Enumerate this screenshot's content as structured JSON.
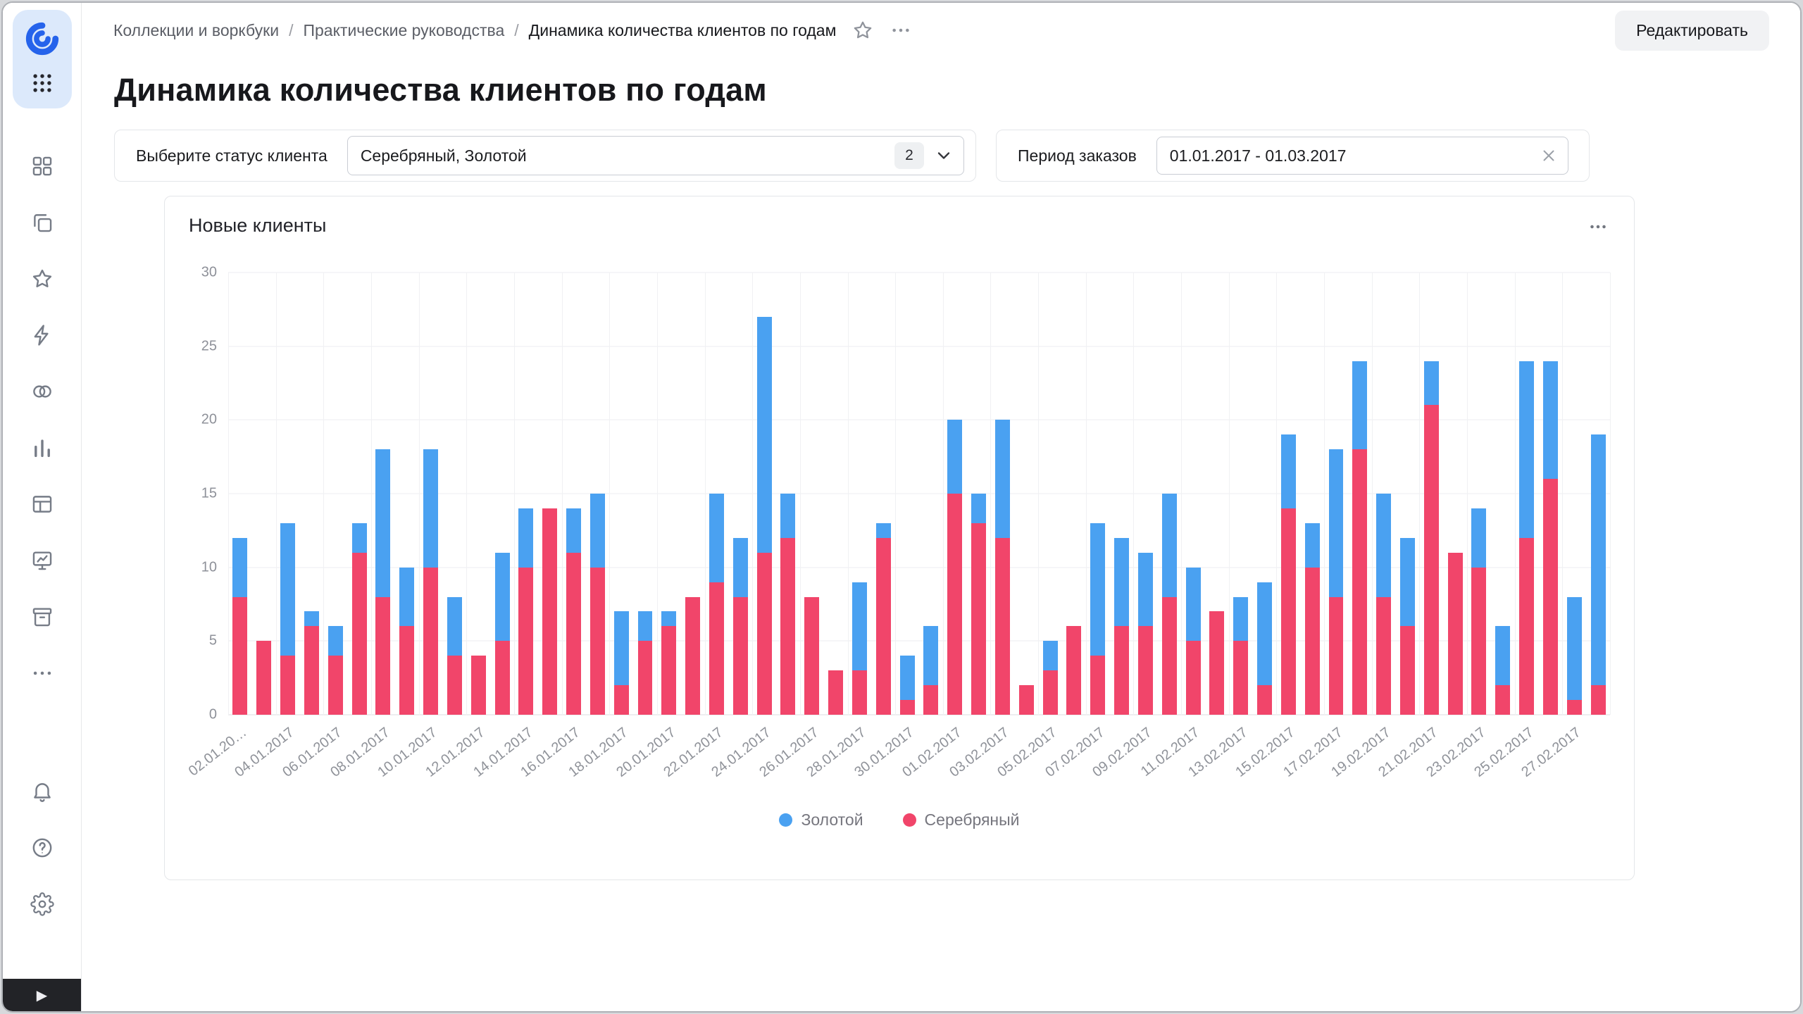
{
  "window": {
    "edit_button": "Редактировать"
  },
  "sidebar": {
    "icons": [
      "collections-icon",
      "workbooks-copy-icon",
      "favorites-star-icon",
      "editor-lightning-icon",
      "connections-circles-icon",
      "charts-bars-icon",
      "datasets-table-icon",
      "dashboards-monitor-icon",
      "storage-archive-icon",
      "more-ellipsis-icon"
    ],
    "bottom_icons": [
      "bell-icon",
      "help-icon",
      "settings-gear-icon"
    ],
    "expand_icon": "play-triangle"
  },
  "breadcrumbs": {
    "separator": "/",
    "items": [
      "Коллекции и воркбуки",
      "Практические руководства",
      "Динамика количества клиентов по годам"
    ]
  },
  "page": {
    "title": "Динамика количества клиентов по годам"
  },
  "filters": {
    "status": {
      "label": "Выберите статус клиента",
      "value": "Серебряный, Золотой",
      "count_badge": "2"
    },
    "period": {
      "label": "Период заказов",
      "value": "01.01.2017 - 01.03.2017"
    }
  },
  "chart_card": {
    "title": "Новые клиенты",
    "menu_icon": "ellipsis"
  },
  "colors": {
    "gold": "#4AA1F1",
    "silver": "#F1456A",
    "accent": "#2563EB"
  },
  "chart_data": {
    "type": "bar",
    "stacked": true,
    "title": "Новые клиенты",
    "xlabel": "",
    "ylabel": "",
    "ylim": [
      0,
      30
    ],
    "yticks": [
      0,
      5,
      10,
      15,
      20,
      25,
      30
    ],
    "grid": true,
    "legend_position": "bottom",
    "categories": [
      "02.01.2017",
      "03.01.2017",
      "04.01.2017",
      "05.01.2017",
      "06.01.2017",
      "07.01.2017",
      "08.01.2017",
      "09.01.2017",
      "10.01.2017",
      "11.01.2017",
      "12.01.2017",
      "13.01.2017",
      "14.01.2017",
      "15.01.2017",
      "16.01.2017",
      "17.01.2017",
      "18.01.2017",
      "19.01.2017",
      "20.01.2017",
      "21.01.2017",
      "22.01.2017",
      "23.01.2017",
      "24.01.2017",
      "25.01.2017",
      "26.01.2017",
      "27.01.2017",
      "28.01.2017",
      "29.01.2017",
      "30.01.2017",
      "31.01.2017",
      "01.02.2017",
      "02.02.2017",
      "03.02.2017",
      "04.02.2017",
      "05.02.2017",
      "06.02.2017",
      "07.02.2017",
      "08.02.2017",
      "09.02.2017",
      "10.02.2017",
      "11.02.2017",
      "12.02.2017",
      "13.02.2017",
      "14.02.2017",
      "15.02.2017",
      "16.02.2017",
      "17.02.2017",
      "18.02.2017",
      "19.02.2017",
      "20.02.2017",
      "21.02.2017",
      "22.02.2017",
      "23.02.2017",
      "24.02.2017",
      "25.02.2017",
      "26.02.2017",
      "27.02.2017",
      "28.02.2017"
    ],
    "x_tick_labels": [
      "02.01.20…",
      "04.01.2017",
      "06.01.2017",
      "08.01.2017",
      "10.01.2017",
      "12.01.2017",
      "14.01.2017",
      "16.01.2017",
      "18.01.2017",
      "20.01.2017",
      "22.01.2017",
      "24.01.2017",
      "26.01.2017",
      "28.01.2017",
      "30.01.2017",
      "01.02.2017",
      "03.02.2017",
      "05.02.2017",
      "07.02.2017",
      "09.02.2017",
      "11.02.2017",
      "13.02.2017",
      "15.02.2017",
      "17.02.2017",
      "19.02.2017",
      "21.02.2017",
      "23.02.2017",
      "25.02.2017",
      "27.02.2017"
    ],
    "series": [
      {
        "name": "Золотой",
        "color": "#4AA1F1",
        "values": [
          4,
          0,
          9,
          1,
          2,
          2,
          10,
          4,
          8,
          4,
          0,
          6,
          4,
          0,
          3,
          5,
          5,
          2,
          1,
          0,
          6,
          4,
          16,
          3,
          0,
          0,
          6,
          1,
          3,
          4,
          5,
          2,
          8,
          0,
          2,
          0,
          9,
          6,
          5,
          7,
          5,
          0,
          3,
          7,
          5,
          3,
          10,
          6,
          7,
          6,
          3,
          0,
          4,
          4,
          12,
          8,
          7,
          17
        ]
      },
      {
        "name": "Серебряный",
        "color": "#F1456A",
        "values": [
          8,
          5,
          4,
          6,
          4,
          11,
          8,
          6,
          10,
          4,
          4,
          5,
          10,
          14,
          11,
          10,
          2,
          5,
          6,
          8,
          9,
          8,
          11,
          12,
          8,
          3,
          3,
          12,
          1,
          2,
          15,
          13,
          12,
          2,
          3,
          6,
          4,
          6,
          6,
          8,
          5,
          7,
          5,
          2,
          14,
          10,
          8,
          18,
          8,
          6,
          21,
          11,
          10,
          2,
          12,
          16,
          1,
          2
        ]
      }
    ]
  }
}
